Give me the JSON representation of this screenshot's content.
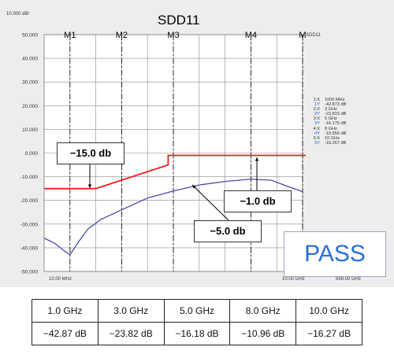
{
  "title": "SDD11",
  "y_axis": {
    "top_label": "10.000 dB/",
    "ticks": [
      "50.000",
      "40.000",
      "30.000",
      "20.000",
      "10.000",
      "0.000",
      "-10.000",
      "-20.000",
      "-30.000",
      "-40.000",
      "-50.000"
    ]
  },
  "x_axis": {
    "start": "10.00 MHz",
    "end": "10.00 GHz",
    "extra": "999.00 GHz"
  },
  "markers": [
    "M1",
    "M2",
    "M3",
    "M4",
    "M"
  ],
  "side_label": "SDD11",
  "readout": [
    {
      "k": "1:X",
      "v": "1000 MHz",
      "blue": false
    },
    {
      "k": "1Y",
      "v": "-42.873 dB",
      "blue": true
    },
    {
      "k": "2:X",
      "v": "3 GHz",
      "blue": false
    },
    {
      "k": "2Y",
      "v": "-23.815 dB",
      "blue": true
    },
    {
      "k": "3:X",
      "v": "5 GHz",
      "blue": false
    },
    {
      "k": "3Y",
      "v": "-16.175 dB",
      "blue": true
    },
    {
      "k": "4:X",
      "v": "8 GHz",
      "blue": false
    },
    {
      "k": "4Y",
      "v": "-10.956 dB",
      "blue": true
    },
    {
      "k": "5:X",
      "v": "10 GHz",
      "blue": false
    },
    {
      "k": "5Y",
      "v": "-16.267 dB",
      "blue": true
    }
  ],
  "callouts": {
    "limit_low": "−15.0 db",
    "limit_mid": "−5.0 db",
    "limit_high": "−1.0 db"
  },
  "pass_label": "PASS",
  "colors": {
    "limit_line": "#ee1c1c",
    "trace": "#4a4aa8",
    "pass_text": "#2a6fd6",
    "background": "#ecedec"
  },
  "chart_data": {
    "type": "line",
    "title": "SDD11",
    "xlabel": "",
    "ylabel": "",
    "ylim": [
      -50,
      50
    ],
    "x_unit": "GHz",
    "series": [
      {
        "role": "measured",
        "points": [
          [
            0.01,
            -36
          ],
          [
            0.4,
            -38
          ],
          [
            0.8,
            -41.5
          ],
          [
            1.0,
            -43
          ],
          [
            1.3,
            -38
          ],
          [
            1.7,
            -32
          ],
          [
            2.2,
            -28
          ],
          [
            3.0,
            -24
          ],
          [
            4.0,
            -19
          ],
          [
            5.0,
            -16
          ],
          [
            6.0,
            -13.5
          ],
          [
            7.0,
            -12
          ],
          [
            8.0,
            -11
          ],
          [
            8.8,
            -11.5
          ],
          [
            9.4,
            -14
          ],
          [
            10.0,
            -16.3
          ]
        ]
      },
      {
        "role": "limit",
        "points": [
          [
            0.01,
            -15
          ],
          [
            2.0,
            -15
          ],
          [
            4.8,
            -5
          ],
          [
            4.8,
            -1
          ],
          [
            10.0,
            -1
          ]
        ]
      }
    ],
    "table": {
      "headers": [
        "1.0 GHz",
        "3.0 GHz",
        "5.0 GHz",
        "8.0 GHz",
        "10.0 GHz"
      ],
      "values": [
        "−42.87 dB",
        "−23.82 dB",
        "−16.18 dB",
        "−10.96 dB",
        "−16.27 dB"
      ]
    }
  }
}
